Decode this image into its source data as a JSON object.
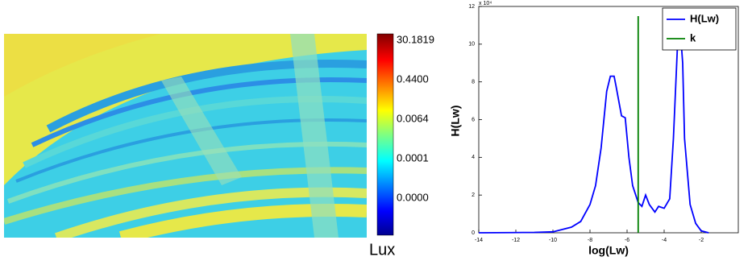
{
  "image_panel": {
    "colorbar_labels": [
      "30.1819",
      "0.4400",
      "0.0064",
      "0.0001",
      "0.0000"
    ],
    "colorbar_unit": "Lux"
  },
  "chart_data": {
    "type": "line",
    "xlabel": "log(Lw)",
    "ylabel": "H(Lw)",
    "y_multiplier": "x 10⁴",
    "xlim": [
      -14,
      0
    ],
    "xticks": [
      -14,
      -12,
      -10,
      -8,
      -6,
      -4,
      -2
    ],
    "ylim": [
      0,
      12
    ],
    "yticks": [
      0,
      2,
      4,
      6,
      8,
      10,
      12
    ],
    "legend": "upper right",
    "series": [
      {
        "name": "H(Lw)",
        "color": "#0000ff",
        "x": [
          -14,
          -11,
          -10,
          -9,
          -8.5,
          -8,
          -7.7,
          -7.4,
          -7.1,
          -6.9,
          -6.7,
          -6.6,
          -6.3,
          -6.1,
          -5.9,
          -5.7,
          -5.4,
          -5.2,
          -5.0,
          -4.8,
          -4.5,
          -4.3,
          -4.0,
          -3.7,
          -3.5,
          -3.3,
          -3.2,
          -3.0,
          -2.9,
          -2.6,
          -2.3,
          -2.0,
          -1.6
        ],
        "values": [
          0,
          0.02,
          0.05,
          0.3,
          0.6,
          1.5,
          2.5,
          4.5,
          7.5,
          8.3,
          8.3,
          7.8,
          6.2,
          6.1,
          4.0,
          2.5,
          1.6,
          1.4,
          2.0,
          1.5,
          1.1,
          1.4,
          1.3,
          1.8,
          5.0,
          9.5,
          11.7,
          9.0,
          5.0,
          1.5,
          0.5,
          0.1,
          0
        ]
      }
    ],
    "threshold": {
      "name": "k",
      "x": -5.4,
      "color": "#007f00"
    }
  }
}
